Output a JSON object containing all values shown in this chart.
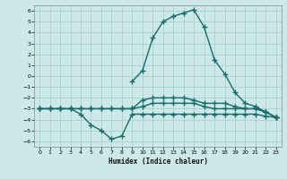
{
  "xlabel": "Humidex (Indice chaleur)",
  "bg_color": "#cce8e8",
  "grid_color": "#aacfcf",
  "line_color": "#1a6b6b",
  "xlim": [
    -0.5,
    23.5
  ],
  "ylim": [
    -6.5,
    6.5
  ],
  "xticks": [
    0,
    1,
    2,
    3,
    4,
    5,
    6,
    7,
    8,
    9,
    10,
    11,
    12,
    13,
    14,
    15,
    16,
    17,
    18,
    19,
    20,
    21,
    22,
    23
  ],
  "yticks": [
    -6,
    -5,
    -4,
    -3,
    -2,
    -1,
    0,
    1,
    2,
    3,
    4,
    5,
    6
  ],
  "lines": [
    {
      "x": [
        0,
        1,
        2,
        3,
        4,
        5,
        6,
        7,
        8,
        9,
        10,
        11,
        12,
        13,
        14,
        15,
        16,
        17,
        18,
        19,
        20,
        21,
        22,
        23
      ],
      "y": [
        -3,
        -3,
        -3,
        -3,
        -3.5,
        -4.5,
        -5,
        -5.8,
        -5.5,
        -3.5,
        -3.5,
        -3.5,
        -3.5,
        -3.5,
        -3.5,
        -3.5,
        -3.5,
        -3.5,
        -3.5,
        -3.5,
        -3.5,
        -3.5,
        -3.7,
        -3.8
      ]
    },
    {
      "x": [
        0,
        1,
        2,
        3,
        4,
        5,
        6,
        7,
        8,
        9,
        10,
        11,
        12,
        13,
        14,
        15,
        16,
        17,
        18,
        19,
        20,
        21,
        22,
        23
      ],
      "y": [
        -3,
        -3,
        -3,
        -3,
        -3,
        -3,
        -3,
        -3,
        -3,
        -3,
        -2.8,
        -2.5,
        -2.5,
        -2.5,
        -2.5,
        -2.5,
        -2.8,
        -3,
        -3,
        -3,
        -3,
        -3,
        -3.3,
        -3.8
      ]
    },
    {
      "x": [
        0,
        1,
        2,
        3,
        4,
        5,
        6,
        7,
        8,
        9,
        10,
        11,
        12,
        13,
        14,
        15,
        16,
        17,
        18,
        19,
        20,
        21,
        22,
        23
      ],
      "y": [
        -3,
        -3,
        -3,
        -3,
        -3,
        -3,
        -3,
        -3,
        -3,
        -3,
        -2.2,
        -2,
        -2,
        -2,
        -2,
        -2.2,
        -2.5,
        -2.5,
        -2.5,
        -2.8,
        -3,
        -3,
        -3.3,
        -3.8
      ]
    },
    {
      "x": [
        9,
        10,
        11,
        12,
        13,
        14,
        15,
        16,
        17,
        18,
        19,
        20,
        21,
        22,
        23
      ],
      "y": [
        -0.5,
        0.5,
        3.5,
        5,
        5.5,
        5.8,
        6.1,
        4.5,
        1.5,
        0.2,
        -1.5,
        -2.5,
        -2.8,
        -3.3,
        -3.8
      ]
    }
  ],
  "marker": "+",
  "markersize": 4,
  "markeredgewidth": 1.0,
  "linewidth": 1.0
}
